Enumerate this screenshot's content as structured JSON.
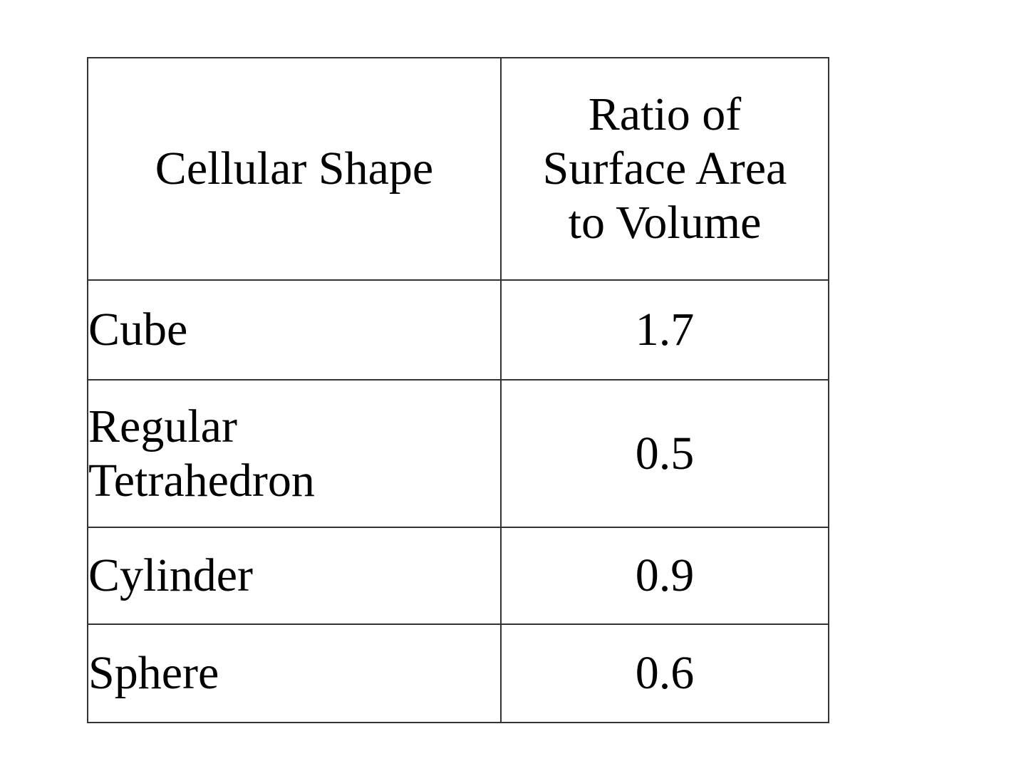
{
  "table": {
    "headers": {
      "shape": "Cellular Shape",
      "ratio_lines": [
        "Ratio of",
        "Surface Area",
        "to Volume"
      ]
    },
    "rows": [
      {
        "shape_lines": [
          "Cube"
        ],
        "ratio": "1.7"
      },
      {
        "shape_lines": [
          "Regular",
          "Tetrahedron"
        ],
        "ratio": "0.5"
      },
      {
        "shape_lines": [
          "Cylinder"
        ],
        "ratio": "0.9"
      },
      {
        "shape_lines": [
          "Sphere"
        ],
        "ratio": "0.6"
      }
    ]
  }
}
